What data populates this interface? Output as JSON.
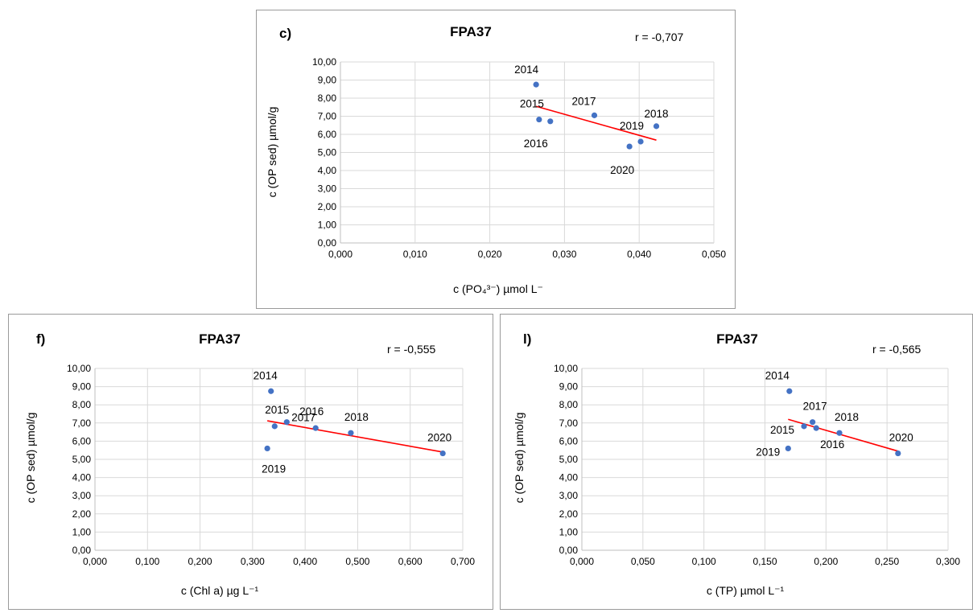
{
  "chart_data": [
    {
      "type": "scatter",
      "panel_label": "c)",
      "title": "FPA37",
      "r_text": "r = -0,707",
      "xlabel": "c (PO₄³⁻) µmol L⁻",
      "ylabel": "c (OP sed) µmol/g",
      "xlim": [
        0,
        0.05
      ],
      "ylim": [
        0,
        10
      ],
      "xticks": [
        "0,000",
        "0,010",
        "0,020",
        "0,030",
        "0,040",
        "0,050"
      ],
      "yticks": [
        "0,00",
        "1,00",
        "2,00",
        "3,00",
        "4,00",
        "5,00",
        "6,00",
        "7,00",
        "8,00",
        "9,00",
        "10,00"
      ],
      "legend": "none",
      "grid": true,
      "marker_color": "#4472C4",
      "trend_color": "#FF0000",
      "points": [
        {
          "label": "2014",
          "x": 0.0262,
          "y": 8.75
        },
        {
          "label": "2015",
          "x": 0.0266,
          "y": 6.82
        },
        {
          "label": "2016",
          "x": 0.0281,
          "y": 6.72
        },
        {
          "label": "2017",
          "x": 0.034,
          "y": 7.05
        },
        {
          "label": "2018",
          "x": 0.0423,
          "y": 6.45
        },
        {
          "label": "2019",
          "x": 0.0402,
          "y": 5.6
        },
        {
          "label": "2020",
          "x": 0.0387,
          "y": 5.33
        }
      ],
      "trendline": {
        "x": [
          0.0262,
          0.0423
        ],
        "y": [
          7.55,
          5.68
        ]
      }
    },
    {
      "type": "scatter",
      "panel_label": "f)",
      "title": "FPA37",
      "r_text": "r = -0,555",
      "xlabel": "c (Chl a) µg L⁻¹",
      "ylabel": "c (OP sed) µmol/g",
      "xlim": [
        0,
        0.7
      ],
      "ylim": [
        0,
        10
      ],
      "xticks": [
        "0,000",
        "0,100",
        "0,200",
        "0,300",
        "0,400",
        "0,500",
        "0,600",
        "0,700"
      ],
      "yticks": [
        "0,00",
        "1,00",
        "2,00",
        "3,00",
        "4,00",
        "5,00",
        "6,00",
        "7,00",
        "8,00",
        "9,00",
        "10,00"
      ],
      "legend": "none",
      "grid": true,
      "marker_color": "#4472C4",
      "trend_color": "#FF0000",
      "points": [
        {
          "label": "2014",
          "x": 0.335,
          "y": 8.75
        },
        {
          "label": "2015",
          "x": 0.342,
          "y": 6.82
        },
        {
          "label": "2016",
          "x": 0.42,
          "y": 6.72
        },
        {
          "label": "2017",
          "x": 0.365,
          "y": 7.05
        },
        {
          "label": "2018",
          "x": 0.487,
          "y": 6.45
        },
        {
          "label": "2019",
          "x": 0.328,
          "y": 5.6
        },
        {
          "label": "2020",
          "x": 0.662,
          "y": 5.33
        }
      ],
      "trendline": {
        "x": [
          0.328,
          0.662
        ],
        "y": [
          7.12,
          5.4
        ]
      }
    },
    {
      "type": "scatter",
      "panel_label": "l)",
      "title": "FPA37",
      "r_text": "r = -0,565",
      "xlabel": "c (TP) µmol L⁻¹",
      "ylabel": "c (OP sed) µmol/g",
      "xlim": [
        0,
        0.3
      ],
      "ylim": [
        0,
        10
      ],
      "xticks": [
        "0,000",
        "0,050",
        "0,100",
        "0,150",
        "0,200",
        "0,250",
        "0,300"
      ],
      "yticks": [
        "0,00",
        "1,00",
        "2,00",
        "3,00",
        "4,00",
        "5,00",
        "6,00",
        "7,00",
        "8,00",
        "9,00",
        "10,00"
      ],
      "legend": "none",
      "grid": true,
      "marker_color": "#4472C4",
      "trend_color": "#FF0000",
      "points": [
        {
          "label": "2014",
          "x": 0.17,
          "y": 8.75
        },
        {
          "label": "2015",
          "x": 0.182,
          "y": 6.82
        },
        {
          "label": "2016",
          "x": 0.192,
          "y": 6.72
        },
        {
          "label": "2017",
          "x": 0.189,
          "y": 7.05
        },
        {
          "label": "2018",
          "x": 0.211,
          "y": 6.45
        },
        {
          "label": "2019",
          "x": 0.169,
          "y": 5.6
        },
        {
          "label": "2020",
          "x": 0.259,
          "y": 5.33
        }
      ],
      "trendline": {
        "x": [
          0.169,
          0.259
        ],
        "y": [
          7.2,
          5.45
        ]
      }
    }
  ]
}
